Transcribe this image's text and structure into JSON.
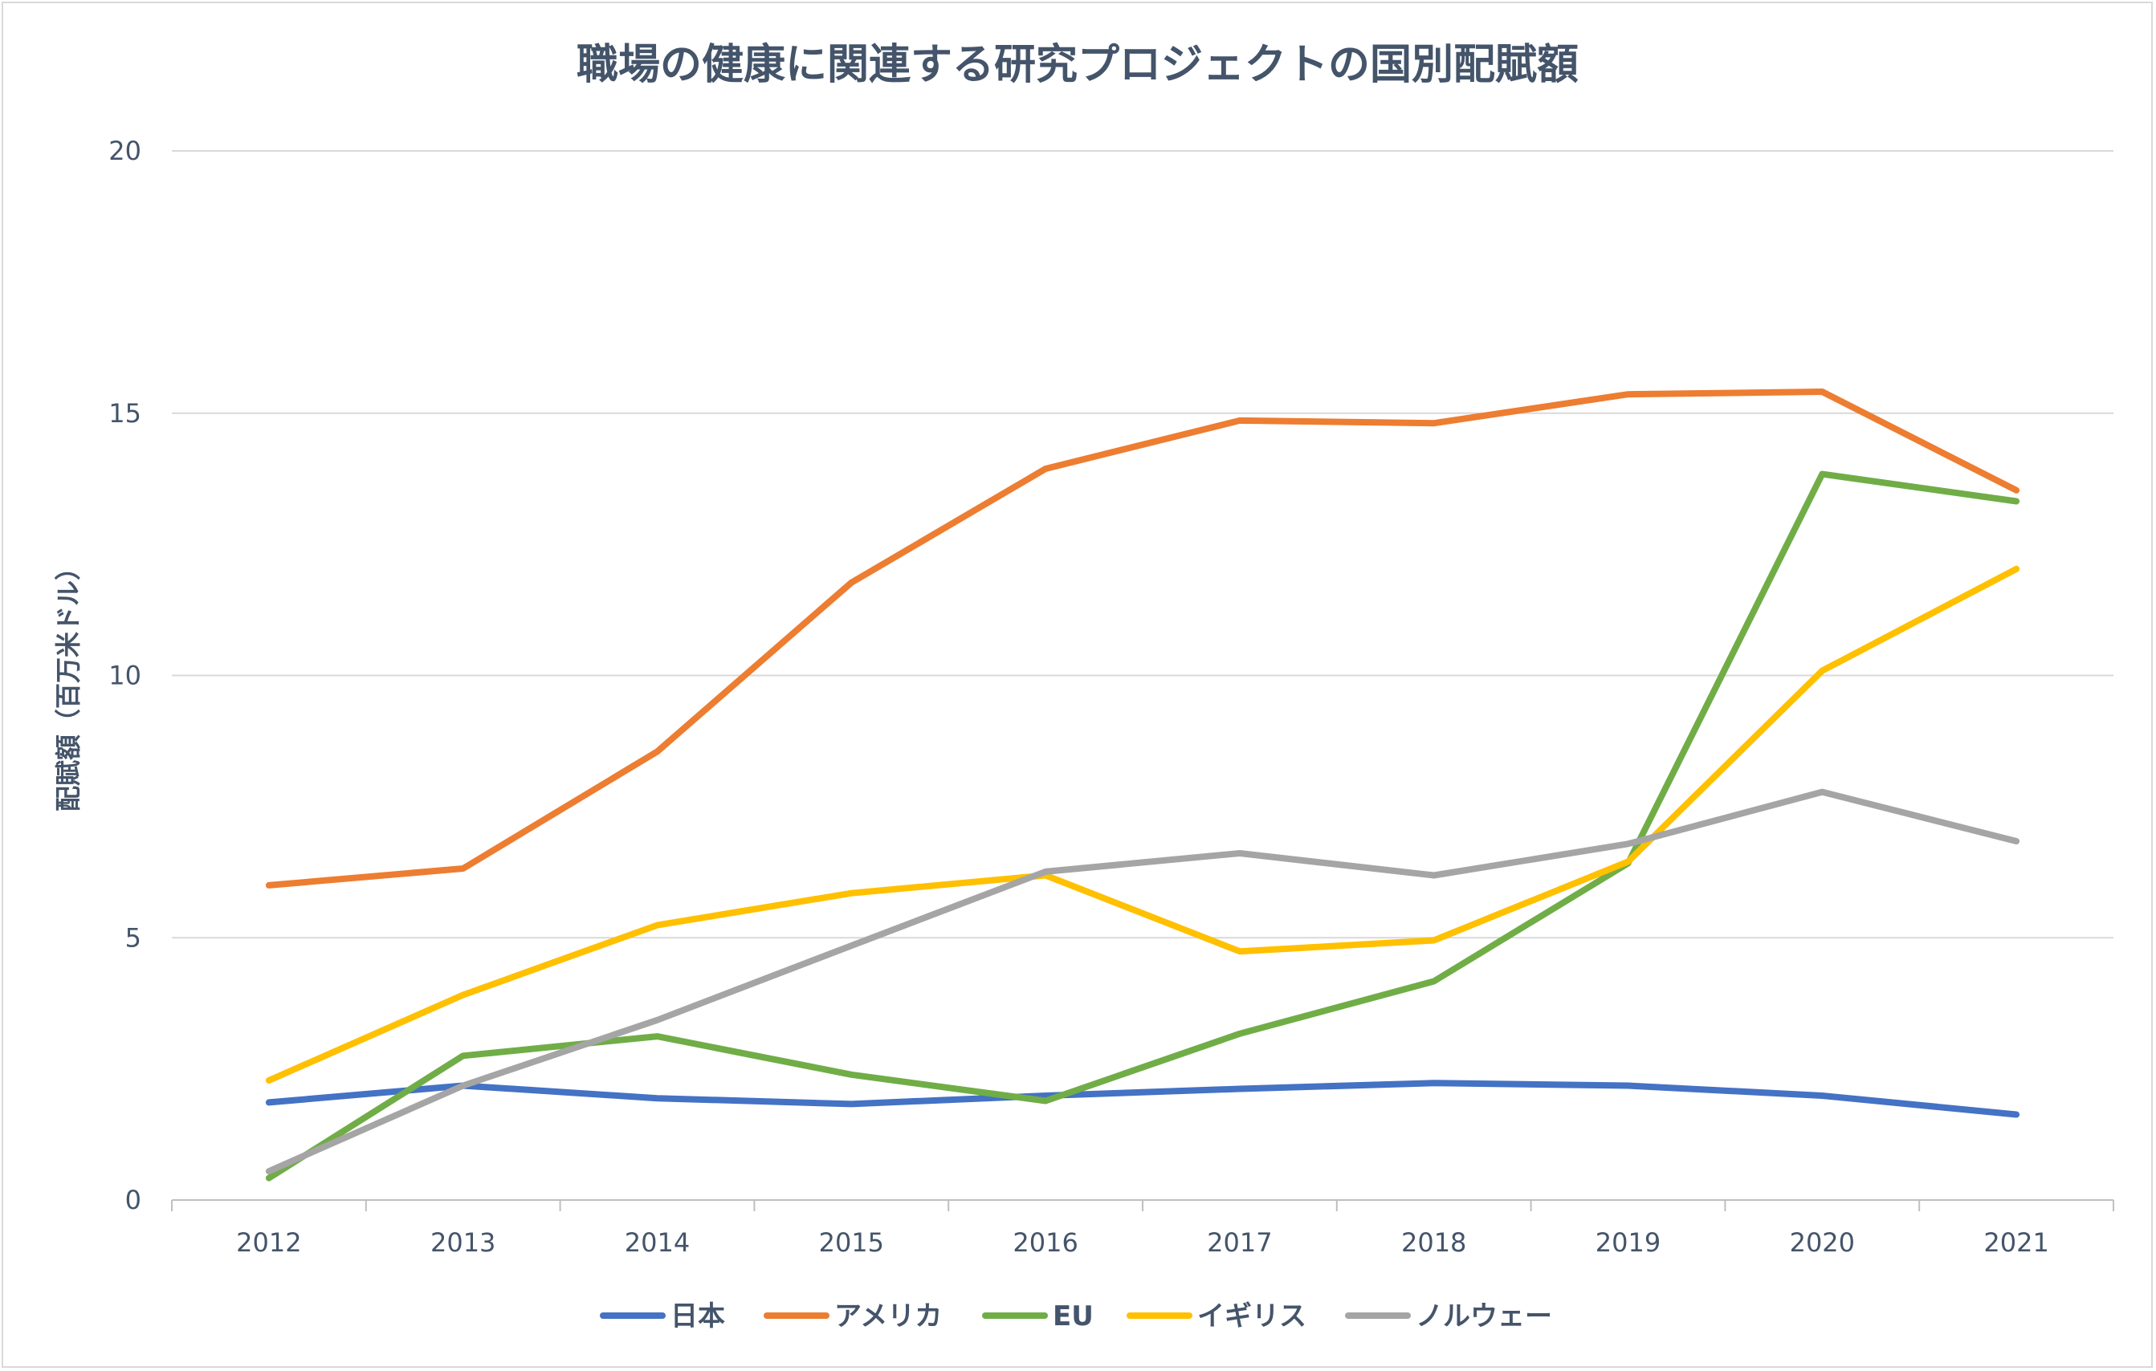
{
  "chart_data": {
    "type": "line",
    "title": "職場の健康に関連する研究プロジェクトの国別配賦額",
    "xlabel": "",
    "ylabel": "配賦額（百万米ドル）",
    "ylim": [
      0,
      20
    ],
    "yticks": [
      "0",
      "5",
      "10",
      "15",
      "20"
    ],
    "categories": [
      "2012",
      "2013",
      "2014",
      "2015",
      "2016",
      "2017",
      "2018",
      "2019",
      "2020",
      "2021"
    ],
    "grid": "horizontal",
    "legend_position": "bottom",
    "series": [
      {
        "name": "日本",
        "color": "#4472c4",
        "values": [
          1.86,
          2.18,
          1.94,
          1.83,
          1.99,
          2.12,
          2.23,
          2.18,
          1.99,
          1.63
        ]
      },
      {
        "name": "アメリカ",
        "color": "#ed7d31",
        "values": [
          6.0,
          6.32,
          8.55,
          11.77,
          13.94,
          14.86,
          14.81,
          15.36,
          15.41,
          13.53
        ]
      },
      {
        "name": "EU",
        "color": "#70ad47",
        "values": [
          0.42,
          2.75,
          3.12,
          2.39,
          1.89,
          3.17,
          4.17,
          6.42,
          13.84,
          13.32
        ]
      },
      {
        "name": "イギリス",
        "color": "#ffc000",
        "values": [
          2.28,
          3.91,
          5.24,
          5.85,
          6.19,
          4.74,
          4.95,
          6.45,
          10.09,
          12.03
        ]
      },
      {
        "name": "ノルウェー",
        "color": "#a5a5a5",
        "values": [
          0.55,
          2.18,
          3.43,
          4.85,
          6.26,
          6.61,
          6.19,
          6.79,
          7.78,
          6.84
        ]
      }
    ]
  }
}
